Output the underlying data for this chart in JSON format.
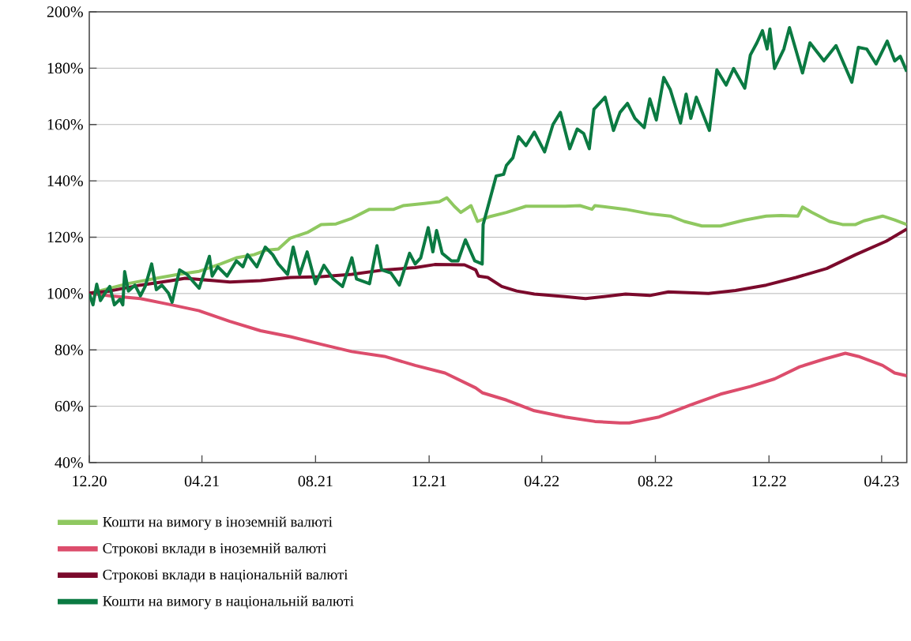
{
  "chart_data": {
    "type": "line",
    "xlim": [
      "2020-12-01",
      "2023-04-28"
    ],
    "xticks": [
      {
        "value": "2020-12-01",
        "label": "12.20"
      },
      {
        "value": "2021-04-01",
        "label": "04.21"
      },
      {
        "value": "2021-08-01",
        "label": "08.21"
      },
      {
        "value": "2021-12-01",
        "label": "12.21"
      },
      {
        "value": "2022-04-01",
        "label": "04.22"
      },
      {
        "value": "2022-08-01",
        "label": "08.22"
      },
      {
        "value": "2022-12-01",
        "label": "12.22"
      },
      {
        "value": "2023-04-01",
        "label": "04.23"
      }
    ],
    "ylim": [
      40,
      200
    ],
    "yticks": [
      {
        "value": 40,
        "label": "40%"
      },
      {
        "value": 60,
        "label": "60%"
      },
      {
        "value": 80,
        "label": "80%"
      },
      {
        "value": 100,
        "label": "100%"
      },
      {
        "value": 120,
        "label": "120%"
      },
      {
        "value": 140,
        "label": "140%"
      },
      {
        "value": 160,
        "label": "160%"
      },
      {
        "value": 180,
        "label": "180%"
      },
      {
        "value": 200,
        "label": "200%"
      }
    ],
    "grid": "y",
    "legend": "bottom",
    "line_style": "solid",
    "series": [
      {
        "name": "Кошти на вимогу в іноземній валюті",
        "color": "#8fc860",
        "x": [
          "2020-12-01",
          "2021-01-11",
          "2021-02-11",
          "2021-03-07",
          "2021-03-29",
          "2021-04-21",
          "2021-05-08",
          "2021-05-27",
          "2021-06-09",
          "2021-06-22",
          "2021-07-05",
          "2021-07-24",
          "2021-08-07",
          "2021-08-23",
          "2021-09-09",
          "2021-09-28",
          "2021-10-24",
          "2021-11-03",
          "2021-11-26",
          "2021-12-12",
          "2021-12-20",
          "2021-12-28",
          "2022-01-04",
          "2022-01-15",
          "2022-01-22",
          "2022-02-03",
          "2022-02-22",
          "2022-03-15",
          "2022-03-31",
          "2022-04-26",
          "2022-05-12",
          "2022-05-25",
          "2022-05-28",
          "2022-06-30",
          "2022-07-26",
          "2022-08-17",
          "2022-09-01",
          "2022-09-20",
          "2022-10-10",
          "2022-11-05",
          "2022-11-28",
          "2022-12-14",
          "2023-01-01",
          "2023-01-06",
          "2023-01-16",
          "2023-02-04",
          "2023-02-18",
          "2023-03-04",
          "2023-03-13",
          "2023-04-02",
          "2023-04-15",
          "2023-04-28"
        ],
        "values": [
          100,
          103.5,
          105.4,
          106.8,
          107.9,
          110.5,
          112.7,
          113.8,
          115.4,
          115.8,
          119.7,
          121.8,
          124.5,
          124.7,
          126.7,
          129.9,
          129.9,
          131.2,
          132,
          132.6,
          134,
          131,
          128.8,
          131.2,
          125.6,
          127.2,
          128.8,
          131,
          131,
          131,
          131.2,
          129.9,
          131.2,
          129.9,
          128.3,
          127.5,
          125.6,
          124,
          124,
          126.1,
          127.5,
          127.7,
          127.5,
          130.7,
          128.8,
          125.6,
          124.5,
          124.5,
          125.8,
          127.5,
          126.1,
          124.5
        ]
      },
      {
        "name": "Строкові вклади в іноземній валюті",
        "color": "#dc4d6c",
        "x": [
          "2020-12-01",
          "2020-12-23",
          "2021-01-25",
          "2021-02-27",
          "2021-03-29",
          "2021-05-01",
          "2021-06-03",
          "2021-07-05",
          "2021-08-07",
          "2021-09-09",
          "2021-10-14",
          "2021-11-16",
          "2021-12-18",
          "2022-01-20",
          "2022-01-27",
          "2022-02-22",
          "2022-03-24",
          "2022-04-26",
          "2022-05-28",
          "2022-06-24",
          "2022-07-04",
          "2022-08-05",
          "2022-09-08",
          "2022-10-10",
          "2022-11-11",
          "2022-12-07",
          "2023-01-03",
          "2023-01-29",
          "2023-02-21",
          "2023-03-07",
          "2023-04-02",
          "2023-04-15",
          "2023-04-28"
        ],
        "values": [
          100.2,
          99.2,
          98.2,
          96,
          93.9,
          90.1,
          86.8,
          84.7,
          82,
          79.4,
          77.7,
          74.5,
          71.8,
          66.5,
          64.8,
          62.2,
          58.4,
          56.2,
          54.6,
          54.1,
          54.1,
          56.2,
          60.5,
          64.3,
          67,
          69.7,
          74,
          76.7,
          78.8,
          77.7,
          74.5,
          71.8,
          70.8
        ]
      },
      {
        "name": "Строкові вклади в національній валюті",
        "color": "#7b0a2c",
        "x": [
          "2020-12-01",
          "2020-12-23",
          "2021-01-25",
          "2021-02-27",
          "2021-03-14",
          "2021-04-14",
          "2021-05-01",
          "2021-06-03",
          "2021-07-05",
          "2021-08-07",
          "2021-09-09",
          "2021-10-14",
          "2021-11-16",
          "2021-12-07",
          "2022-01-08",
          "2022-01-20",
          "2022-01-23",
          "2022-02-02",
          "2022-02-17",
          "2022-03-05",
          "2022-03-24",
          "2022-04-26",
          "2022-05-18",
          "2022-06-30",
          "2022-07-26",
          "2022-08-15",
          "2022-09-27",
          "2022-10-26",
          "2022-11-28",
          "2022-12-30",
          "2023-02-01",
          "2023-03-04",
          "2023-04-06",
          "2023-04-28"
        ],
        "values": [
          100.2,
          100.9,
          103,
          104.6,
          105.4,
          104.6,
          104.1,
          104.6,
          105.7,
          106,
          106.8,
          108.4,
          109.2,
          110.3,
          110.2,
          108.4,
          106.2,
          105.7,
          102.5,
          100.9,
          99.8,
          98.9,
          98.2,
          99.8,
          99.3,
          100.6,
          100,
          101.1,
          103,
          105.7,
          108.9,
          113.8,
          118.6,
          122.9
        ]
      },
      {
        "name": "Кошти на вимогу в національній валюті",
        "color": "#0b7a42",
        "x": [
          "2020-12-01",
          "2020-12-05",
          "2020-12-09",
          "2020-12-13",
          "2020-12-18",
          "2020-12-23",
          "2020-12-28",
          "2021-01-03",
          "2021-01-06",
          "2021-01-08",
          "2021-01-12",
          "2021-01-19",
          "2021-01-25",
          "2021-01-30",
          "2021-02-06",
          "2021-02-11",
          "2021-02-17",
          "2021-02-24",
          "2021-02-28",
          "2021-03-03",
          "2021-03-08",
          "2021-03-16",
          "2021-03-23",
          "2021-03-29",
          "2021-04-09",
          "2021-04-12",
          "2021-04-18",
          "2021-04-28",
          "2021-05-08",
          "2021-05-15",
          "2021-05-20",
          "2021-05-30",
          "2021-06-08",
          "2021-06-16",
          "2021-06-22",
          "2021-07-02",
          "2021-07-08",
          "2021-07-15",
          "2021-07-23",
          "2021-08-01",
          "2021-08-10",
          "2021-08-20",
          "2021-08-30",
          "2021-09-09",
          "2021-09-14",
          "2021-09-28",
          "2021-10-06",
          "2021-10-11",
          "2021-10-21",
          "2021-10-30",
          "2021-11-10",
          "2021-11-16",
          "2021-11-22",
          "2021-11-30",
          "2021-12-05",
          "2021-12-09",
          "2021-12-15",
          "2021-12-25",
          "2022-01-01",
          "2022-01-09",
          "2022-01-19",
          "2022-01-27",
          "2022-01-28",
          "2022-02-04",
          "2022-02-11",
          "2022-02-19",
          "2022-02-22",
          "2022-03-01",
          "2022-03-07",
          "2022-03-15",
          "2022-03-24",
          "2022-04-04",
          "2022-04-13",
          "2022-04-21",
          "2022-05-01",
          "2022-05-09",
          "2022-05-16",
          "2022-05-22",
          "2022-05-27",
          "2022-06-08",
          "2022-06-17",
          "2022-06-24",
          "2022-07-02",
          "2022-07-10",
          "2022-07-20",
          "2022-07-26",
          "2022-08-02",
          "2022-08-10",
          "2022-08-17",
          "2022-08-28",
          "2022-09-03",
          "2022-09-08",
          "2022-09-14",
          "2022-09-28",
          "2022-10-06",
          "2022-10-16",
          "2022-10-24",
          "2022-11-05",
          "2022-11-11",
          "2022-11-18",
          "2022-11-24",
          "2022-11-29",
          "2022-12-02",
          "2022-12-07",
          "2022-12-17",
          "2022-12-23",
          "2023-01-06",
          "2023-01-14",
          "2023-01-29",
          "2023-02-11",
          "2023-02-18",
          "2023-02-28",
          "2023-03-07",
          "2023-03-16",
          "2023-03-26",
          "2023-04-07",
          "2023-04-15",
          "2023-04-21",
          "2023-04-28"
        ],
        "values": [
          100,
          96,
          103.3,
          97.5,
          100.2,
          102.5,
          96,
          98,
          96,
          107.8,
          100.9,
          103,
          99.2,
          102.5,
          110.5,
          101.4,
          103,
          100.2,
          96.9,
          101.4,
          108.4,
          106.8,
          104.1,
          101.9,
          113.2,
          106.2,
          109.5,
          106.2,
          111.6,
          109.5,
          113.8,
          109.5,
          116.5,
          113.8,
          110.5,
          106.8,
          116.5,
          106.8,
          114.8,
          103.5,
          110,
          105.2,
          102.5,
          112.7,
          105.2,
          103.5,
          117,
          108.4,
          107.3,
          103,
          114.3,
          110.5,
          112.7,
          123.4,
          114.8,
          122.4,
          114.3,
          111.6,
          111.6,
          119.1,
          111.6,
          110.5,
          124.5,
          133.1,
          141.7,
          142.3,
          145.5,
          148.2,
          155.7,
          152.5,
          157.3,
          150.3,
          160,
          164.3,
          151.4,
          158.4,
          156.8,
          151.4,
          165.4,
          169.7,
          157.9,
          164.3,
          167.5,
          162.2,
          158.9,
          169.1,
          161.6,
          176.7,
          172.4,
          160.5,
          170.8,
          162.2,
          169.7,
          157.9,
          179.4,
          174,
          179.9,
          172.9,
          184.7,
          189,
          193.3,
          186.8,
          193.9,
          179.9,
          186.8,
          194.4,
          178.3,
          189,
          182.6,
          188,
          182.6,
          175,
          187.4,
          186.8,
          181.5,
          189.6,
          182.6,
          184.2,
          178.8
        ]
      }
    ]
  }
}
